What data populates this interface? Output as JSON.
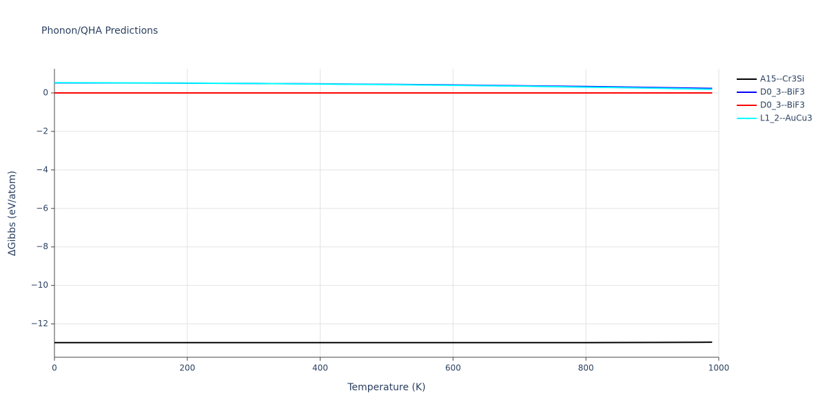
{
  "chart_data": {
    "type": "line",
    "title": "Phonon/QHA Predictions",
    "x_label": "Temperature (K)",
    "y_label": "ΔGibbs (eV/atom)",
    "x": [
      0,
      100,
      200,
      300,
      400,
      500,
      600,
      700,
      800,
      900,
      990
    ],
    "series": [
      {
        "name": "A15--Cr3Si",
        "color": "#000000",
        "values": [
          -12.97,
          -12.97,
          -12.97,
          -12.97,
          -12.97,
          -12.97,
          -12.97,
          -12.97,
          -12.97,
          -12.96,
          -12.95
        ]
      },
      {
        "name": "D0_3--BiF3",
        "color": "#0000ff",
        "values": [
          0.52,
          0.515,
          0.505,
          0.49,
          0.47,
          0.44,
          0.41,
          0.37,
          0.33,
          0.28,
          0.23
        ]
      },
      {
        "name": "D0_3--BiF3",
        "color": "#ff0000",
        "values": [
          0,
          0,
          0,
          0,
          0,
          0,
          0,
          0,
          0,
          0,
          0
        ]
      },
      {
        "name": "L1_2--AuCu3",
        "color": "#00ffff",
        "values": [
          0.53,
          0.52,
          0.51,
          0.49,
          0.46,
          0.43,
          0.39,
          0.35,
          0.3,
          0.25,
          0.19
        ]
      }
    ],
    "xlim": [
      0,
      1000
    ],
    "xticks": [
      0,
      200,
      400,
      600,
      800,
      1000
    ],
    "ylim": [
      -13.73,
      1.25
    ],
    "yticks": [
      0,
      {
        "value": -2,
        "label": "−2"
      },
      {
        "value": -4,
        "label": "−4"
      },
      {
        "value": -6,
        "label": "−6"
      },
      {
        "value": -8,
        "label": "−8"
      },
      {
        "value": -10,
        "label": "−10"
      },
      {
        "value": -12,
        "label": "−12"
      }
    ],
    "grid": true,
    "legend_position": "right"
  }
}
